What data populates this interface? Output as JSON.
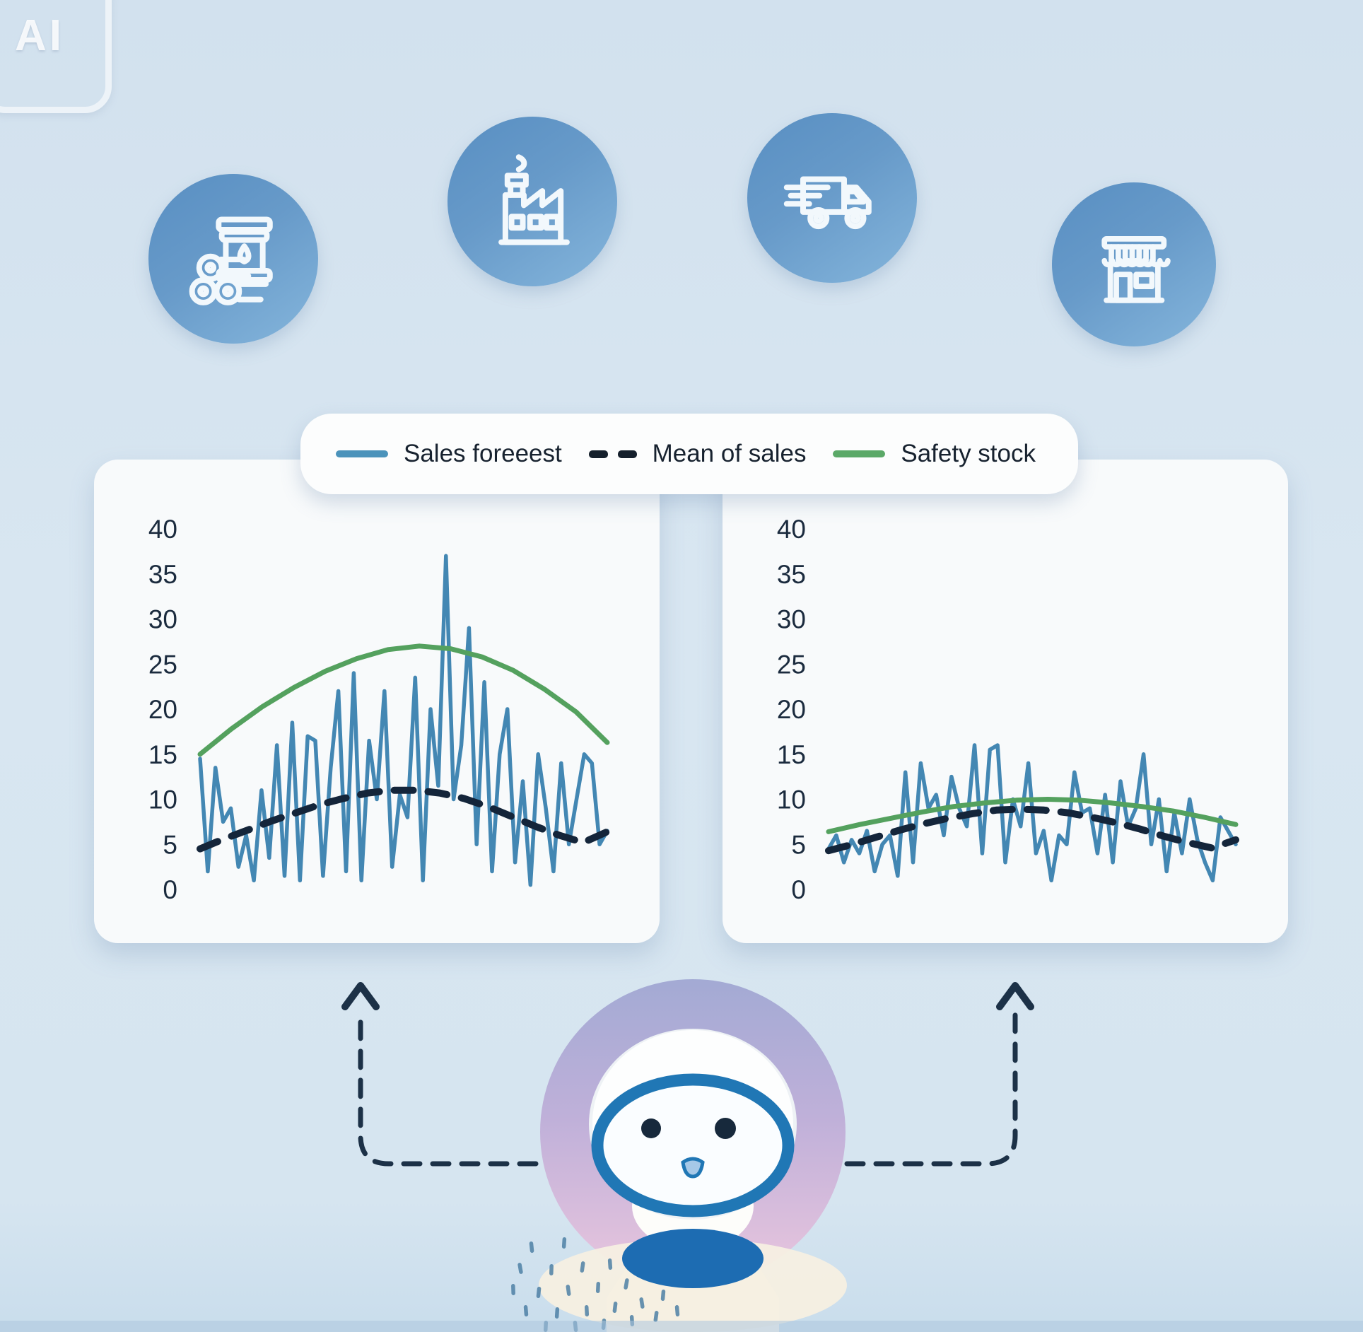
{
  "watermark_badge": {
    "label": "AI"
  },
  "supply_chain": {
    "stages": [
      {
        "icon": "raw-materials-icon"
      },
      {
        "icon": "factory-icon"
      },
      {
        "icon": "delivery-truck-icon"
      },
      {
        "icon": "retail-store-icon"
      }
    ]
  },
  "legend": {
    "items": [
      {
        "label": "Sales foreeest",
        "swatch": "blue-solid-line",
        "color": "#4b93bb"
      },
      {
        "label": "Mean of sales",
        "swatch": "dark-dashed-line",
        "color": "#15202c"
      },
      {
        "label": "Safety stock",
        "swatch": "green-solid-line",
        "color": "#5ba968"
      }
    ]
  },
  "colors": {
    "background": "#d8e6f1",
    "panel": "#f8fafb",
    "icon_circle": "#639ac9",
    "forecast_line": "#4387b3",
    "mean_line": "#14253a",
    "safety_line": "#54a15e",
    "arrow": "#1c3147",
    "robot_ring_top": "#a3aad4",
    "robot_ring_bottom": "#eac6de",
    "robot_blue": "#1d6cb2"
  },
  "chart_data": [
    {
      "type": "line",
      "position": "left",
      "title": "",
      "xlabel": "",
      "ylabel": "",
      "ylim": [
        0,
        40
      ],
      "y_ticks": [
        40,
        35,
        30,
        25,
        20,
        15,
        10,
        5,
        0
      ],
      "grid": false,
      "legend_position": "top-shared",
      "series": [
        {
          "name": "Sales forecast",
          "role": "forecast",
          "color": "#4387b3",
          "style": "solid",
          "values": [
            14.5,
            2,
            13.5,
            7.5,
            9,
            2.5,
            6,
            1,
            11,
            3.5,
            16,
            1.5,
            18.5,
            1,
            17,
            16.5,
            1.5,
            13.5,
            22,
            2,
            24,
            1,
            16.5,
            10,
            22,
            2.5,
            10.5,
            8,
            23.5,
            1,
            20,
            11.5,
            37,
            10,
            16,
            29,
            5,
            23,
            2,
            15,
            20,
            3,
            12,
            0.5,
            15,
            9,
            2,
            14,
            5,
            10,
            15,
            14,
            5,
            6.5
          ]
        },
        {
          "name": "Safety stock",
          "role": "safety",
          "color": "#54a15e",
          "style": "solid",
          "values": [
            15,
            17.8,
            20.3,
            22.4,
            24.2,
            25.6,
            26.6,
            27,
            26.7,
            25.8,
            24.3,
            22.2,
            19.7,
            16.3
          ]
        },
        {
          "name": "Mean of sales",
          "role": "mean",
          "color": "#14253a",
          "style": "dashed",
          "values": [
            4.5,
            5.6,
            6.6,
            7.6,
            8.5,
            9.4,
            10.1,
            10.7,
            11,
            11,
            10.7,
            10.1,
            9.2,
            8.1,
            7,
            6,
            5.2,
            6.4
          ]
        }
      ]
    },
    {
      "type": "line",
      "position": "right",
      "title": "",
      "xlabel": "",
      "ylabel": "",
      "ylim": [
        0,
        40
      ],
      "y_ticks": [
        40,
        35,
        30,
        25,
        20,
        15,
        10,
        5,
        0
      ],
      "grid": false,
      "legend_position": "top-shared",
      "series": [
        {
          "name": "Sales forecast",
          "role": "forecast",
          "color": "#4387b3",
          "style": "solid",
          "values": [
            4.5,
            6,
            3,
            5.5,
            4,
            6.5,
            2,
            5,
            6,
            1.5,
            13,
            3,
            14,
            9,
            10.5,
            6,
            12.5,
            9,
            7,
            16,
            4,
            15.5,
            16,
            3,
            10,
            7,
            14,
            4,
            6.5,
            1,
            6,
            5,
            13,
            8.5,
            9,
            4,
            10.5,
            3,
            12,
            7,
            9,
            15,
            5,
            10,
            2,
            8.5,
            4,
            10,
            5.5,
            3,
            1,
            8,
            6.5,
            5
          ]
        },
        {
          "name": "Safety stock",
          "role": "safety",
          "color": "#54a15e",
          "style": "solid",
          "values": [
            6.4,
            7.2,
            7.9,
            8.6,
            9.2,
            9.6,
            9.9,
            10,
            9.9,
            9.6,
            9.2,
            8.7,
            8,
            7.2
          ]
        },
        {
          "name": "Mean of sales",
          "role": "mean",
          "color": "#14253a",
          "style": "dashed",
          "values": [
            4.3,
            5,
            5.8,
            6.6,
            7.3,
            7.9,
            8.4,
            8.8,
            8.9,
            8.8,
            8.5,
            8,
            7.4,
            6.7,
            5.9,
            5.2,
            4.6,
            5.5
          ]
        }
      ]
    }
  ]
}
